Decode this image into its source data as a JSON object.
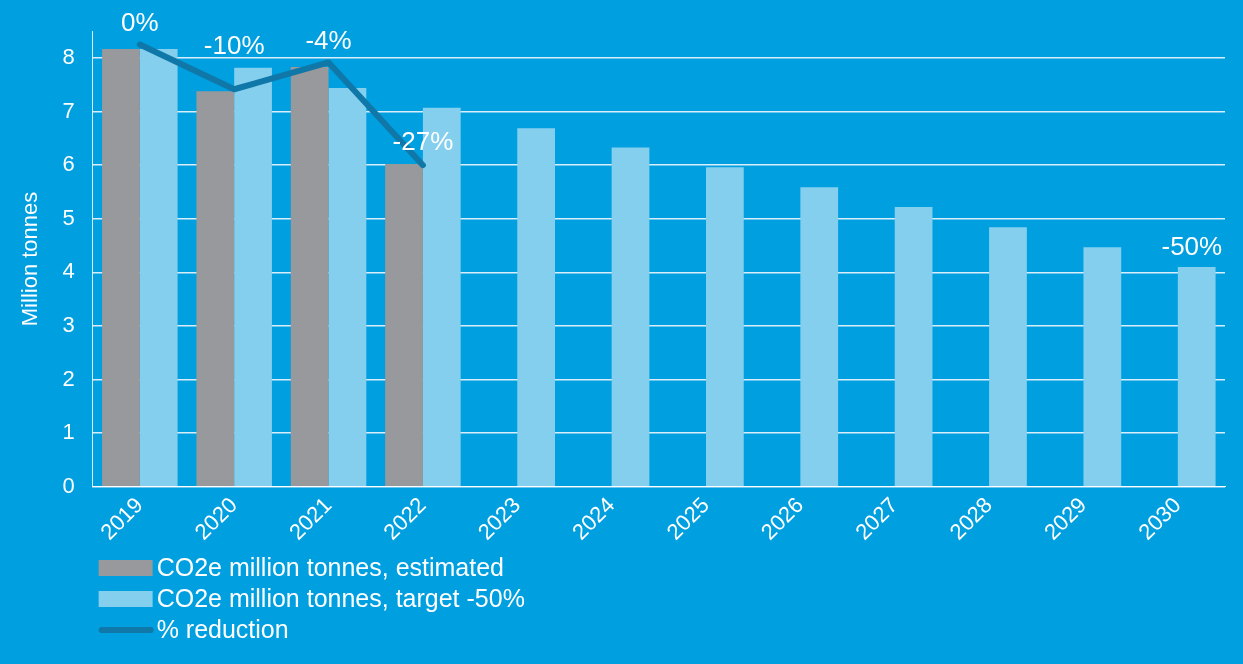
{
  "chart_data": {
    "type": "bar",
    "ylabel": "Million tonnes",
    "categories": [
      "2019",
      "2020",
      "2021",
      "2022",
      "2023",
      "2024",
      "2025",
      "2026",
      "2027",
      "2028",
      "2029",
      "2030"
    ],
    "series": [
      {
        "name": "CO2e million tonnes, estimated",
        "color": "#97999c",
        "values": [
          8.17,
          7.38,
          7.83,
          6.02,
          null,
          null,
          null,
          null,
          null,
          null,
          null,
          null
        ]
      },
      {
        "name": "CO2e million tonnes, target -50%",
        "color": "#85cfee",
        "values": [
          8.17,
          7.82,
          7.44,
          7.07,
          6.69,
          6.33,
          5.96,
          5.59,
          5.22,
          4.84,
          4.47,
          4.1
        ]
      },
      {
        "name": "% reduction",
        "type": "line",
        "axis": "y2",
        "color": "#0f78a8",
        "values": [
          0,
          -10,
          -4,
          -27,
          null,
          null,
          null,
          null,
          null,
          null,
          null,
          null
        ],
        "value_labels": [
          "0%",
          "-10%",
          "-4%",
          "-27%",
          null,
          null,
          null,
          null,
          null,
          null,
          null,
          null
        ]
      }
    ],
    "ylim": [
      0,
      8.5
    ],
    "yticks": [
      0,
      1,
      2,
      3,
      4,
      5,
      6,
      7,
      8
    ],
    "annotations": [
      {
        "text": "-50%",
        "x": "2030",
        "y": 4.1
      }
    ],
    "grid": "y",
    "legend": "bottom left",
    "marker": "none"
  }
}
